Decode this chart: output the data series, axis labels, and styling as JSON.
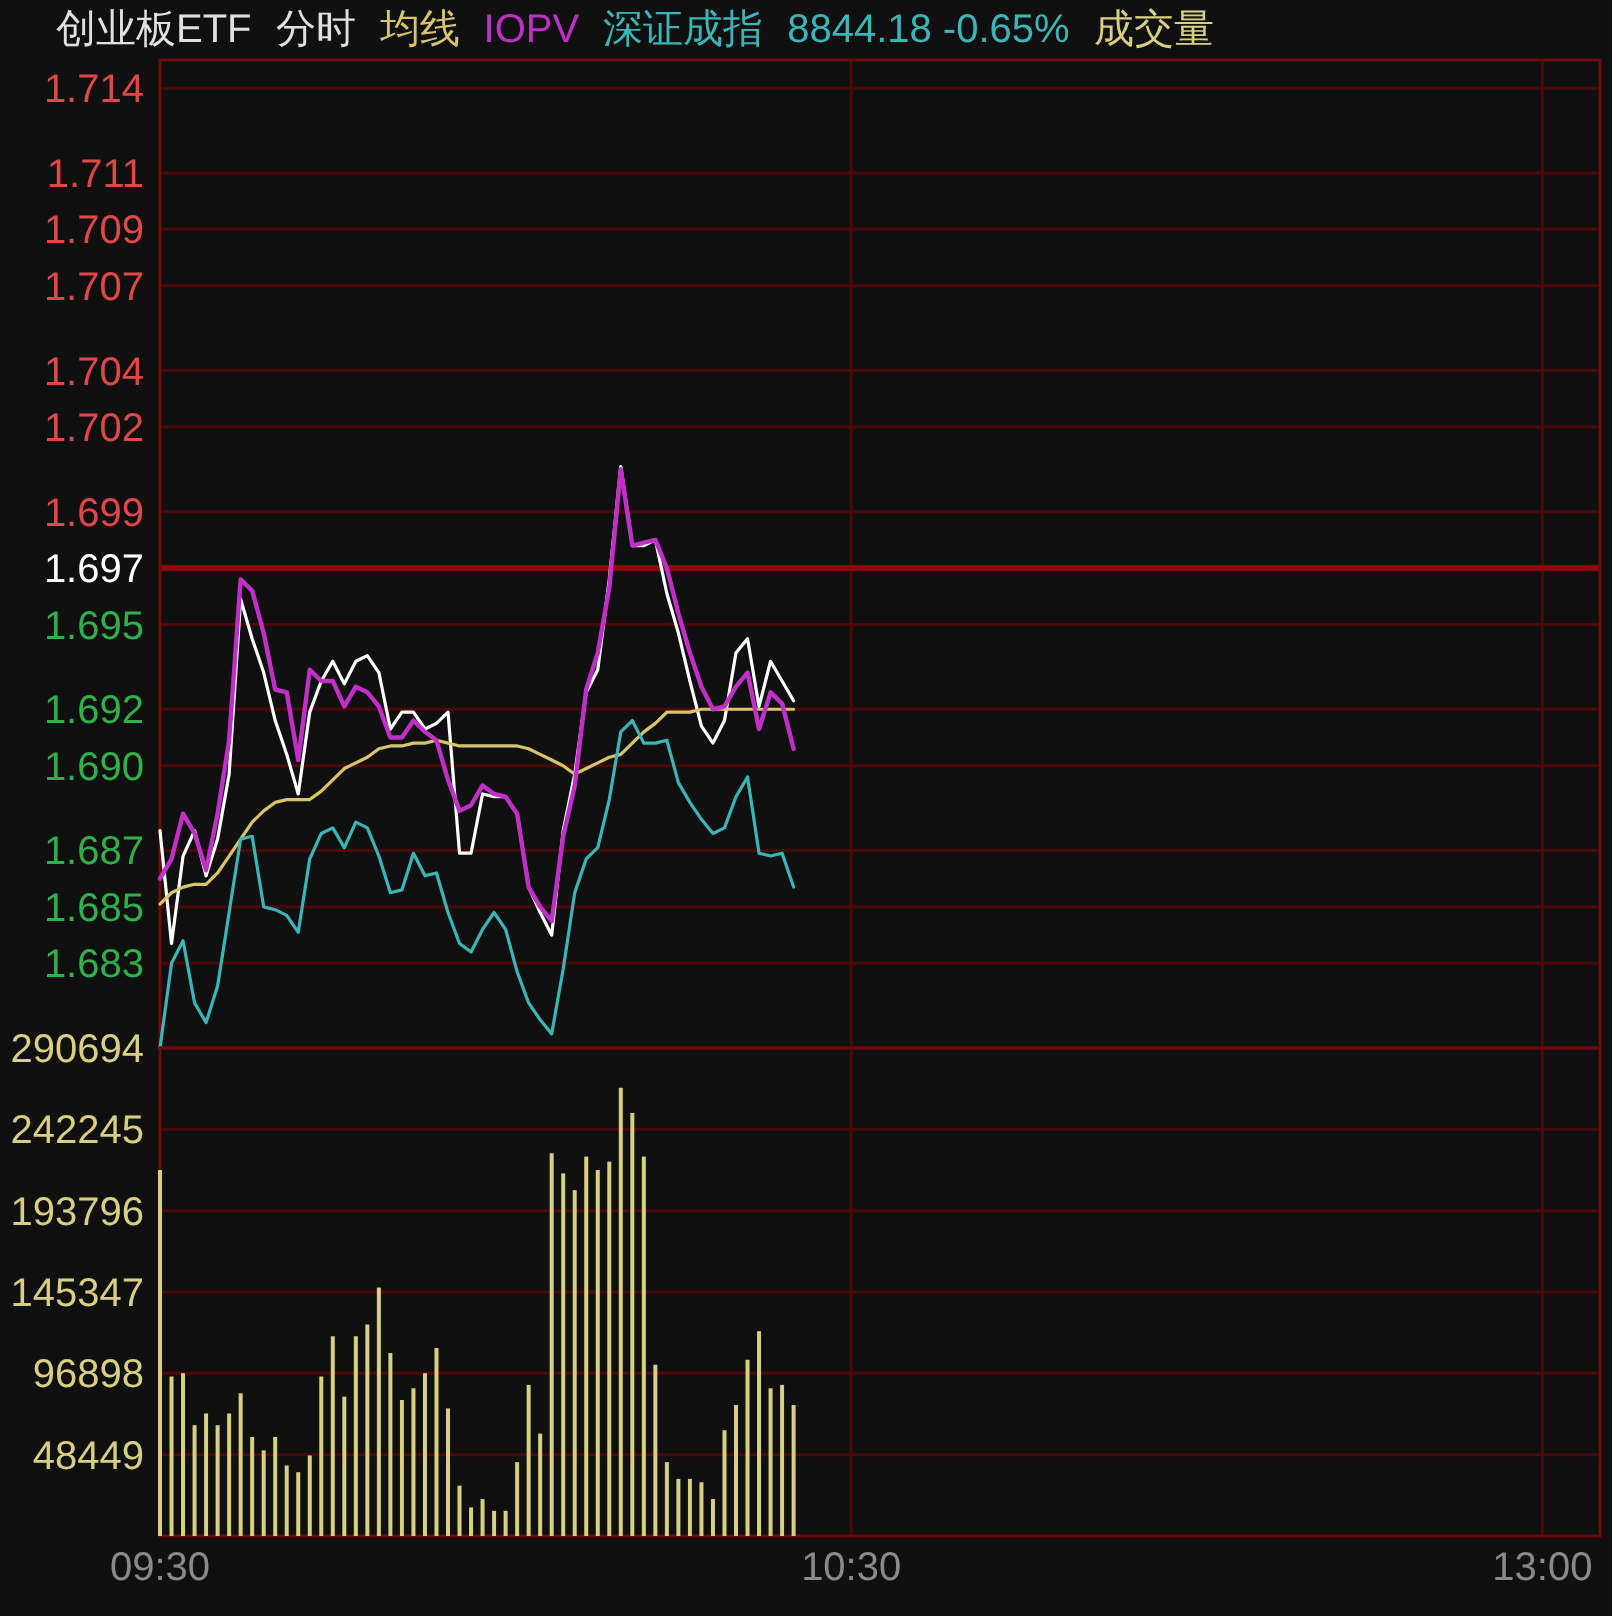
{
  "chart_data": [
    {
      "type": "line",
      "title": "创业板ETF",
      "subtitle": "分时",
      "legend": "top",
      "grid": true,
      "tick_labels": "y",
      "annotations": [
        "8844.18 -0.65%"
      ],
      "categories": [
        null,
        null,
        null,
        null,
        null,
        null,
        null,
        null,
        null,
        null,
        null,
        null,
        null,
        null,
        null,
        null,
        null,
        null,
        null,
        null,
        null,
        null,
        null,
        null,
        null,
        null,
        null,
        null,
        null,
        null,
        null,
        null,
        null,
        null,
        null,
        null,
        null,
        null,
        null,
        null,
        null,
        null,
        null,
        null,
        null,
        null,
        null,
        null,
        null,
        null,
        null,
        null,
        null,
        null,
        null,
        null,
        null,
        null,
        null,
        null,
        null,
        null,
        null,
        null,
        null,
        null,
        null,
        null,
        null,
        null,
        null,
        null,
        null,
        null,
        null,
        null,
        null,
        null,
        null,
        null,
        null,
        null,
        null,
        null,
        null,
        null,
        null,
        null,
        null,
        null,
        null,
        null,
        null,
        null,
        null,
        null,
        null,
        null,
        null,
        null,
        null,
        null,
        null,
        null,
        null,
        null,
        null,
        null,
        null,
        null,
        null,
        null,
        null,
        null,
        null,
        null,
        null,
        null,
        null,
        null,
        null,
        null,
        null,
        null,
        null,
        null
      ],
      "ylim": [
        1.68,
        1.715
      ],
      "yticks": [
        1.714,
        1.711,
        1.709,
        1.707,
        1.704,
        1.702,
        1.699,
        1.697,
        1.695,
        1.692,
        {
          "value": 1.69,
          "label": "1.690"
        },
        1.687,
        1.685,
        1.683
      ],
      "ref_lines": [
        {
          "axis": "y",
          "value": 1.697,
          "color": "#8a0a0a"
        }
      ],
      "series": [
        {
          "color": "#ffffff",
          "values": [
            1.6877,
            1.6837,
            1.6868,
            1.6877,
            1.6861,
            1.6874,
            1.6897,
            1.6959,
            1.6945,
            1.6933,
            1.6916,
            1.6904,
            1.689,
            1.6919,
            1.693,
            1.6937,
            1.6929,
            1.6937,
            1.6939,
            1.6933,
            1.6913,
            1.6919,
            1.6919,
            1.6913,
            1.6915,
            1.6919,
            1.6869,
            1.6869,
            1.689,
            1.6889,
            1.6889,
            1.6883,
            1.6857,
            1.6848,
            1.684,
            1.6877,
            1.6897,
            1.6926,
            1.6934,
            1.6966,
            1.7006,
            1.6978,
            1.6978,
            1.698,
            1.6961,
            1.6947,
            1.693,
            1.6914,
            1.6908,
            1.6916,
            1.694,
            1.6945,
            1.6921,
            1.6937,
            1.693,
            1.6923,
            null,
            null,
            null,
            null,
            null,
            null,
            null,
            null,
            null,
            null,
            null,
            null,
            null,
            null,
            null,
            null,
            null,
            null,
            null,
            null,
            null,
            null,
            null,
            null,
            null,
            null,
            null,
            null,
            null,
            null,
            null,
            null,
            null,
            null,
            null,
            null,
            null,
            null,
            null,
            null,
            null,
            null,
            null,
            null,
            null,
            null,
            null,
            null,
            null,
            null,
            null,
            null,
            null,
            null,
            null,
            null,
            null,
            null,
            null,
            null,
            null,
            null,
            null,
            null,
            null,
            null,
            null,
            null,
            null,
            null
          ]
        },
        {
          "name": "均线",
          "color": "#d8c46a",
          "values": [
            1.6851,
            1.6855,
            1.6857,
            1.6858,
            1.6858,
            1.6862,
            1.6868,
            1.6874,
            1.688,
            1.6884,
            1.6887,
            1.6888,
            1.6888,
            1.6888,
            1.6891,
            1.6895,
            1.6899,
            1.6901,
            1.6903,
            1.6906,
            1.6907,
            1.6907,
            1.6908,
            1.6908,
            1.6909,
            1.6908,
            1.6907,
            1.6907,
            1.6907,
            1.6907,
            1.6907,
            1.6907,
            1.6906,
            1.6904,
            1.6902,
            1.69,
            1.6897,
            1.6899,
            1.6901,
            1.6903,
            1.6904,
            1.6908,
            1.6912,
            1.6915,
            1.6919,
            1.6919,
            1.6919,
            1.692,
            1.692,
            1.692,
            1.692,
            1.692,
            1.692,
            1.692,
            1.692,
            1.692,
            null,
            null,
            null,
            null,
            null,
            null,
            null,
            null,
            null,
            null,
            null,
            null,
            null,
            null,
            null,
            null,
            null,
            null,
            null,
            null,
            null,
            null,
            null,
            null,
            null,
            null,
            null,
            null,
            null,
            null,
            null,
            null,
            null,
            null,
            null,
            null,
            null,
            null,
            null,
            null,
            null,
            null,
            null,
            null,
            null,
            null,
            null,
            null,
            null,
            null,
            null,
            null,
            null,
            null,
            null,
            null,
            null,
            null,
            null,
            null,
            null,
            null,
            null,
            null,
            null,
            null,
            null,
            null,
            null,
            null
          ]
        },
        {
          "name": "IOPV",
          "color": "#c030c8",
          "values": [
            1.686,
            1.6867,
            1.6883,
            1.6876,
            1.6863,
            1.6883,
            1.6909,
            1.6966,
            1.6962,
            1.6947,
            1.6927,
            1.6926,
            1.6902,
            1.6934,
            1.693,
            1.693,
            1.6921,
            1.6928,
            1.6926,
            1.6921,
            1.691,
            1.691,
            1.6916,
            1.6912,
            1.6909,
            1.6895,
            1.6884,
            1.6886,
            1.6893,
            1.689,
            1.6889,
            1.6883,
            1.6857,
            1.685,
            1.6845,
            1.6875,
            1.6893,
            1.6927,
            1.694,
            1.6963,
            1.7005,
            1.6978,
            1.6979,
            1.698,
            1.697,
            1.6954,
            1.694,
            1.6928,
            1.692,
            1.6921,
            1.6928,
            1.6933,
            1.6913,
            1.6926,
            1.6922,
            1.6906,
            null,
            null,
            null,
            null,
            null,
            null,
            null,
            null,
            null,
            null,
            null,
            null,
            null,
            null,
            null,
            null,
            null,
            null,
            null,
            null,
            null,
            null,
            null,
            null,
            null,
            null,
            null,
            null,
            null,
            null,
            null,
            null,
            null,
            null,
            null,
            null,
            null,
            null,
            null,
            null,
            null,
            null,
            null,
            null,
            null,
            null,
            null,
            null,
            null,
            null,
            null,
            null,
            null,
            null,
            null,
            null,
            null,
            null,
            null,
            null,
            null,
            null,
            null,
            null,
            null,
            null,
            null,
            null,
            null,
            null
          ]
        },
        {
          "name": "深证成指",
          "color": "#3ab5b8",
          "values": [
            1.68,
            1.683,
            1.6838,
            1.6816,
            1.6809,
            1.6822,
            1.6848,
            1.6874,
            1.6875,
            1.685,
            1.6849,
            1.6847,
            1.6841,
            1.6867,
            1.6876,
            1.6878,
            1.6871,
            1.688,
            1.6878,
            1.6868,
            1.6855,
            1.6856,
            1.6869,
            1.6861,
            1.6862,
            1.6848,
            1.6837,
            1.6834,
            1.6842,
            1.6848,
            1.6842,
            1.6827,
            1.6816,
            1.681,
            1.6805,
            1.6828,
            1.6855,
            1.6867,
            1.6871,
            1.6888,
            1.6912,
            1.6916,
            1.6908,
            1.6908,
            1.6909,
            1.6894,
            1.6887,
            1.6881,
            1.6876,
            1.6878,
            1.6889,
            1.6896,
            1.6869,
            1.6868,
            1.6869,
            1.6857,
            null,
            null,
            null,
            null,
            null,
            null,
            null,
            null,
            null,
            null,
            null,
            null,
            null,
            null,
            null,
            null,
            null,
            null,
            null,
            null,
            null,
            null,
            null,
            null,
            null,
            null,
            null,
            null,
            null,
            null,
            null,
            null,
            null,
            null,
            null,
            null,
            null,
            null,
            null,
            null,
            null,
            null,
            null,
            null,
            null,
            null,
            null,
            null,
            null,
            null,
            null,
            null,
            null,
            null,
            null,
            null,
            null,
            null,
            null,
            null,
            null,
            null,
            null,
            null,
            null,
            null,
            null,
            null,
            null,
            null
          ]
        }
      ]
    },
    {
      "type": "bar",
      "legend": "top",
      "grid": true,
      "categories": [
        "09:30",
        null,
        null,
        null,
        null,
        null,
        null,
        null,
        null,
        null,
        null,
        null,
        null,
        null,
        null,
        null,
        null,
        null,
        null,
        null,
        null,
        null,
        null,
        null,
        null,
        null,
        null,
        null,
        null,
        null,
        null,
        null,
        null,
        null,
        null,
        null,
        null,
        null,
        null,
        null,
        null,
        null,
        null,
        null,
        null,
        null,
        null,
        null,
        null,
        null,
        null,
        null,
        null,
        null,
        null,
        null,
        null,
        null,
        null,
        null,
        "10:30",
        null,
        null,
        null,
        null,
        null,
        null,
        null,
        null,
        null,
        null,
        null,
        null,
        null,
        null,
        null,
        null,
        null,
        null,
        null,
        null,
        null,
        null,
        null,
        null,
        null,
        null,
        null,
        null,
        null,
        null,
        null,
        null,
        null,
        null,
        null,
        null,
        null,
        null,
        null,
        null,
        null,
        null,
        null,
        null,
        null,
        null,
        null,
        null,
        null,
        null,
        null,
        null,
        null,
        null,
        null,
        null,
        null,
        null,
        null,
        "13:00",
        null,
        null,
        null,
        null,
        null
      ],
      "ylim": [
        0,
        290694
      ],
      "yticks": [
        48449,
        96898,
        145347,
        193796,
        242245,
        290694
      ],
      "series": [
        {
          "name": "成交量",
          "color": "#d8d080",
          "values": [
            218000,
            95000,
            97000,
            66000,
            73000,
            66000,
            73000,
            85000,
            59000,
            51000,
            59000,
            42000,
            38000,
            48000,
            95000,
            119000,
            83000,
            119000,
            126000,
            148000,
            109000,
            81000,
            88000,
            97000,
            112000,
            76000,
            30000,
            17000,
            22000,
            15000,
            15000,
            44000,
            90000,
            61000,
            228000,
            216000,
            206000,
            226000,
            218000,
            223000,
            267000,
            252000,
            226000,
            102000,
            44000,
            34000,
            34000,
            32000,
            22000,
            63000,
            78000,
            105000,
            122000,
            88000,
            90000,
            78000,
            null,
            null,
            null,
            null,
            null,
            null,
            null,
            null,
            null,
            null,
            null,
            null,
            null,
            null,
            null,
            null,
            null,
            null,
            null,
            null,
            null,
            null,
            null,
            null,
            null,
            null,
            null,
            null,
            null,
            null,
            null,
            null,
            null,
            null,
            null,
            null,
            null,
            null,
            null,
            null,
            null,
            null,
            null,
            null,
            null,
            null,
            null,
            null,
            null,
            null,
            null,
            null,
            null,
            null,
            null,
            null,
            null,
            null,
            null,
            null,
            null,
            null,
            null,
            null,
            null,
            null,
            null,
            null,
            null,
            null
          ]
        }
      ]
    }
  ]
}
